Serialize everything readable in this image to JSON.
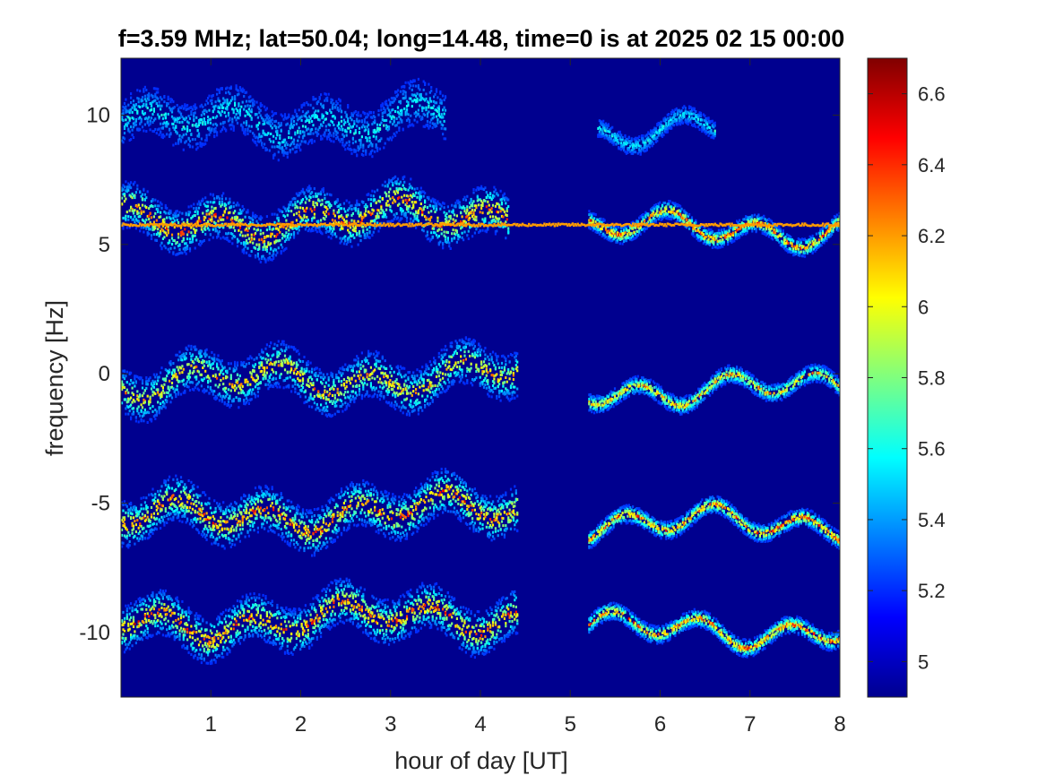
{
  "chart_data": {
    "type": "heatmap",
    "title": "f=3.59 MHz;  lat=50.04; long=14.48, time=0 is at 2025 02 15 00:00",
    "xlabel": "hour of day [UT]",
    "ylabel": "frequency [Hz]",
    "xlim": [
      0,
      8
    ],
    "ylim": [
      -12.5,
      12.2
    ],
    "x_ticks": [
      1,
      2,
      3,
      4,
      5,
      6,
      7,
      8
    ],
    "x_tick_labels": [
      "1",
      "2",
      "3",
      "4",
      "5",
      "6",
      "7",
      "8"
    ],
    "y_ticks": [
      10,
      5,
      0,
      -5,
      -10
    ],
    "y_tick_labels": [
      "10",
      "5",
      "0",
      "-5",
      "-10"
    ],
    "colorbar": {
      "colormap": "jet",
      "clim": [
        4.9,
        6.7
      ],
      "ticks": [
        5,
        5.2,
        5.4,
        5.6,
        5.8,
        6,
        6.2,
        6.4,
        6.6
      ],
      "tick_labels": [
        "5",
        "5.2",
        "5.4",
        "5.6",
        "5.8",
        "6",
        "6.2",
        "6.4",
        "6.6"
      ]
    },
    "background_color": "#00008f",
    "traces": [
      {
        "name_hint": "top trace",
        "center_freq": 9.6,
        "x_range": [
          0,
          3.6
        ],
        "peak_level": 5.7,
        "x_range_2": [
          5.3,
          6.6
        ]
      },
      {
        "name_hint": "upper band",
        "center_freq": 5.8,
        "x_range": [
          0,
          4.3
        ],
        "peak_level": 6.6,
        "x_range_2": [
          5.2,
          8
        ]
      },
      {
        "name_hint": "steady line",
        "center_freq": 5.75,
        "x_range": [
          0,
          8
        ],
        "peak_level": 6.2
      },
      {
        "name_hint": "middle band",
        "center_freq": -0.4,
        "x_range": [
          0,
          4.4
        ],
        "peak_level": 6.4,
        "x_range_2": [
          5.2,
          8
        ]
      },
      {
        "name_hint": "lower band",
        "center_freq": -5.6,
        "x_range": [
          0,
          4.4
        ],
        "peak_level": 6.6,
        "x_range_2": [
          5.2,
          8
        ]
      },
      {
        "name_hint": "bottom band",
        "center_freq": -9.7,
        "x_range": [
          0,
          4.4
        ],
        "peak_level": 6.6,
        "x_range_2": [
          5.2,
          8
        ]
      }
    ],
    "grid": false,
    "legend": "none"
  }
}
